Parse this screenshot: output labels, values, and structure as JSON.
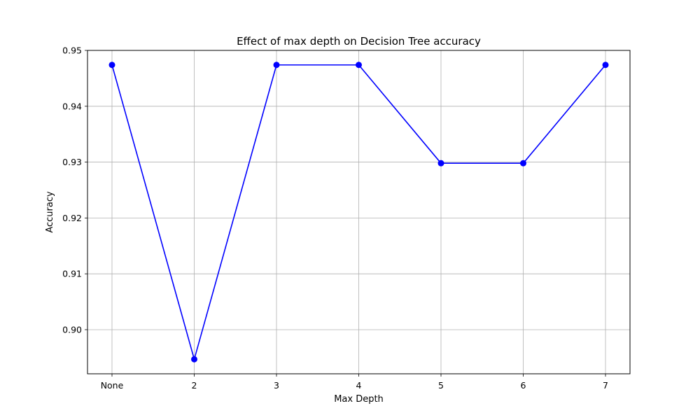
{
  "chart_data": {
    "type": "line",
    "title": "Effect of max depth on Decision Tree accuracy",
    "xlabel": "Max Depth",
    "ylabel": "Accuracy",
    "categories": [
      "None",
      "2",
      "3",
      "4",
      "5",
      "6",
      "7"
    ],
    "series": [
      {
        "values": [
          0.9474,
          0.8947,
          0.9474,
          0.9474,
          0.9298,
          0.9298,
          0.9474
        ],
        "color": "#0000ff",
        "marker": "circle"
      }
    ],
    "ylim": [
      0.8921,
      0.95
    ],
    "yticks": [
      0.9,
      0.91,
      0.92,
      0.93,
      0.94,
      0.95
    ],
    "ytick_labels": [
      "0.90",
      "0.91",
      "0.92",
      "0.93",
      "0.94",
      "0.95"
    ],
    "grid": true,
    "grid_color": "#b0b0b0"
  }
}
